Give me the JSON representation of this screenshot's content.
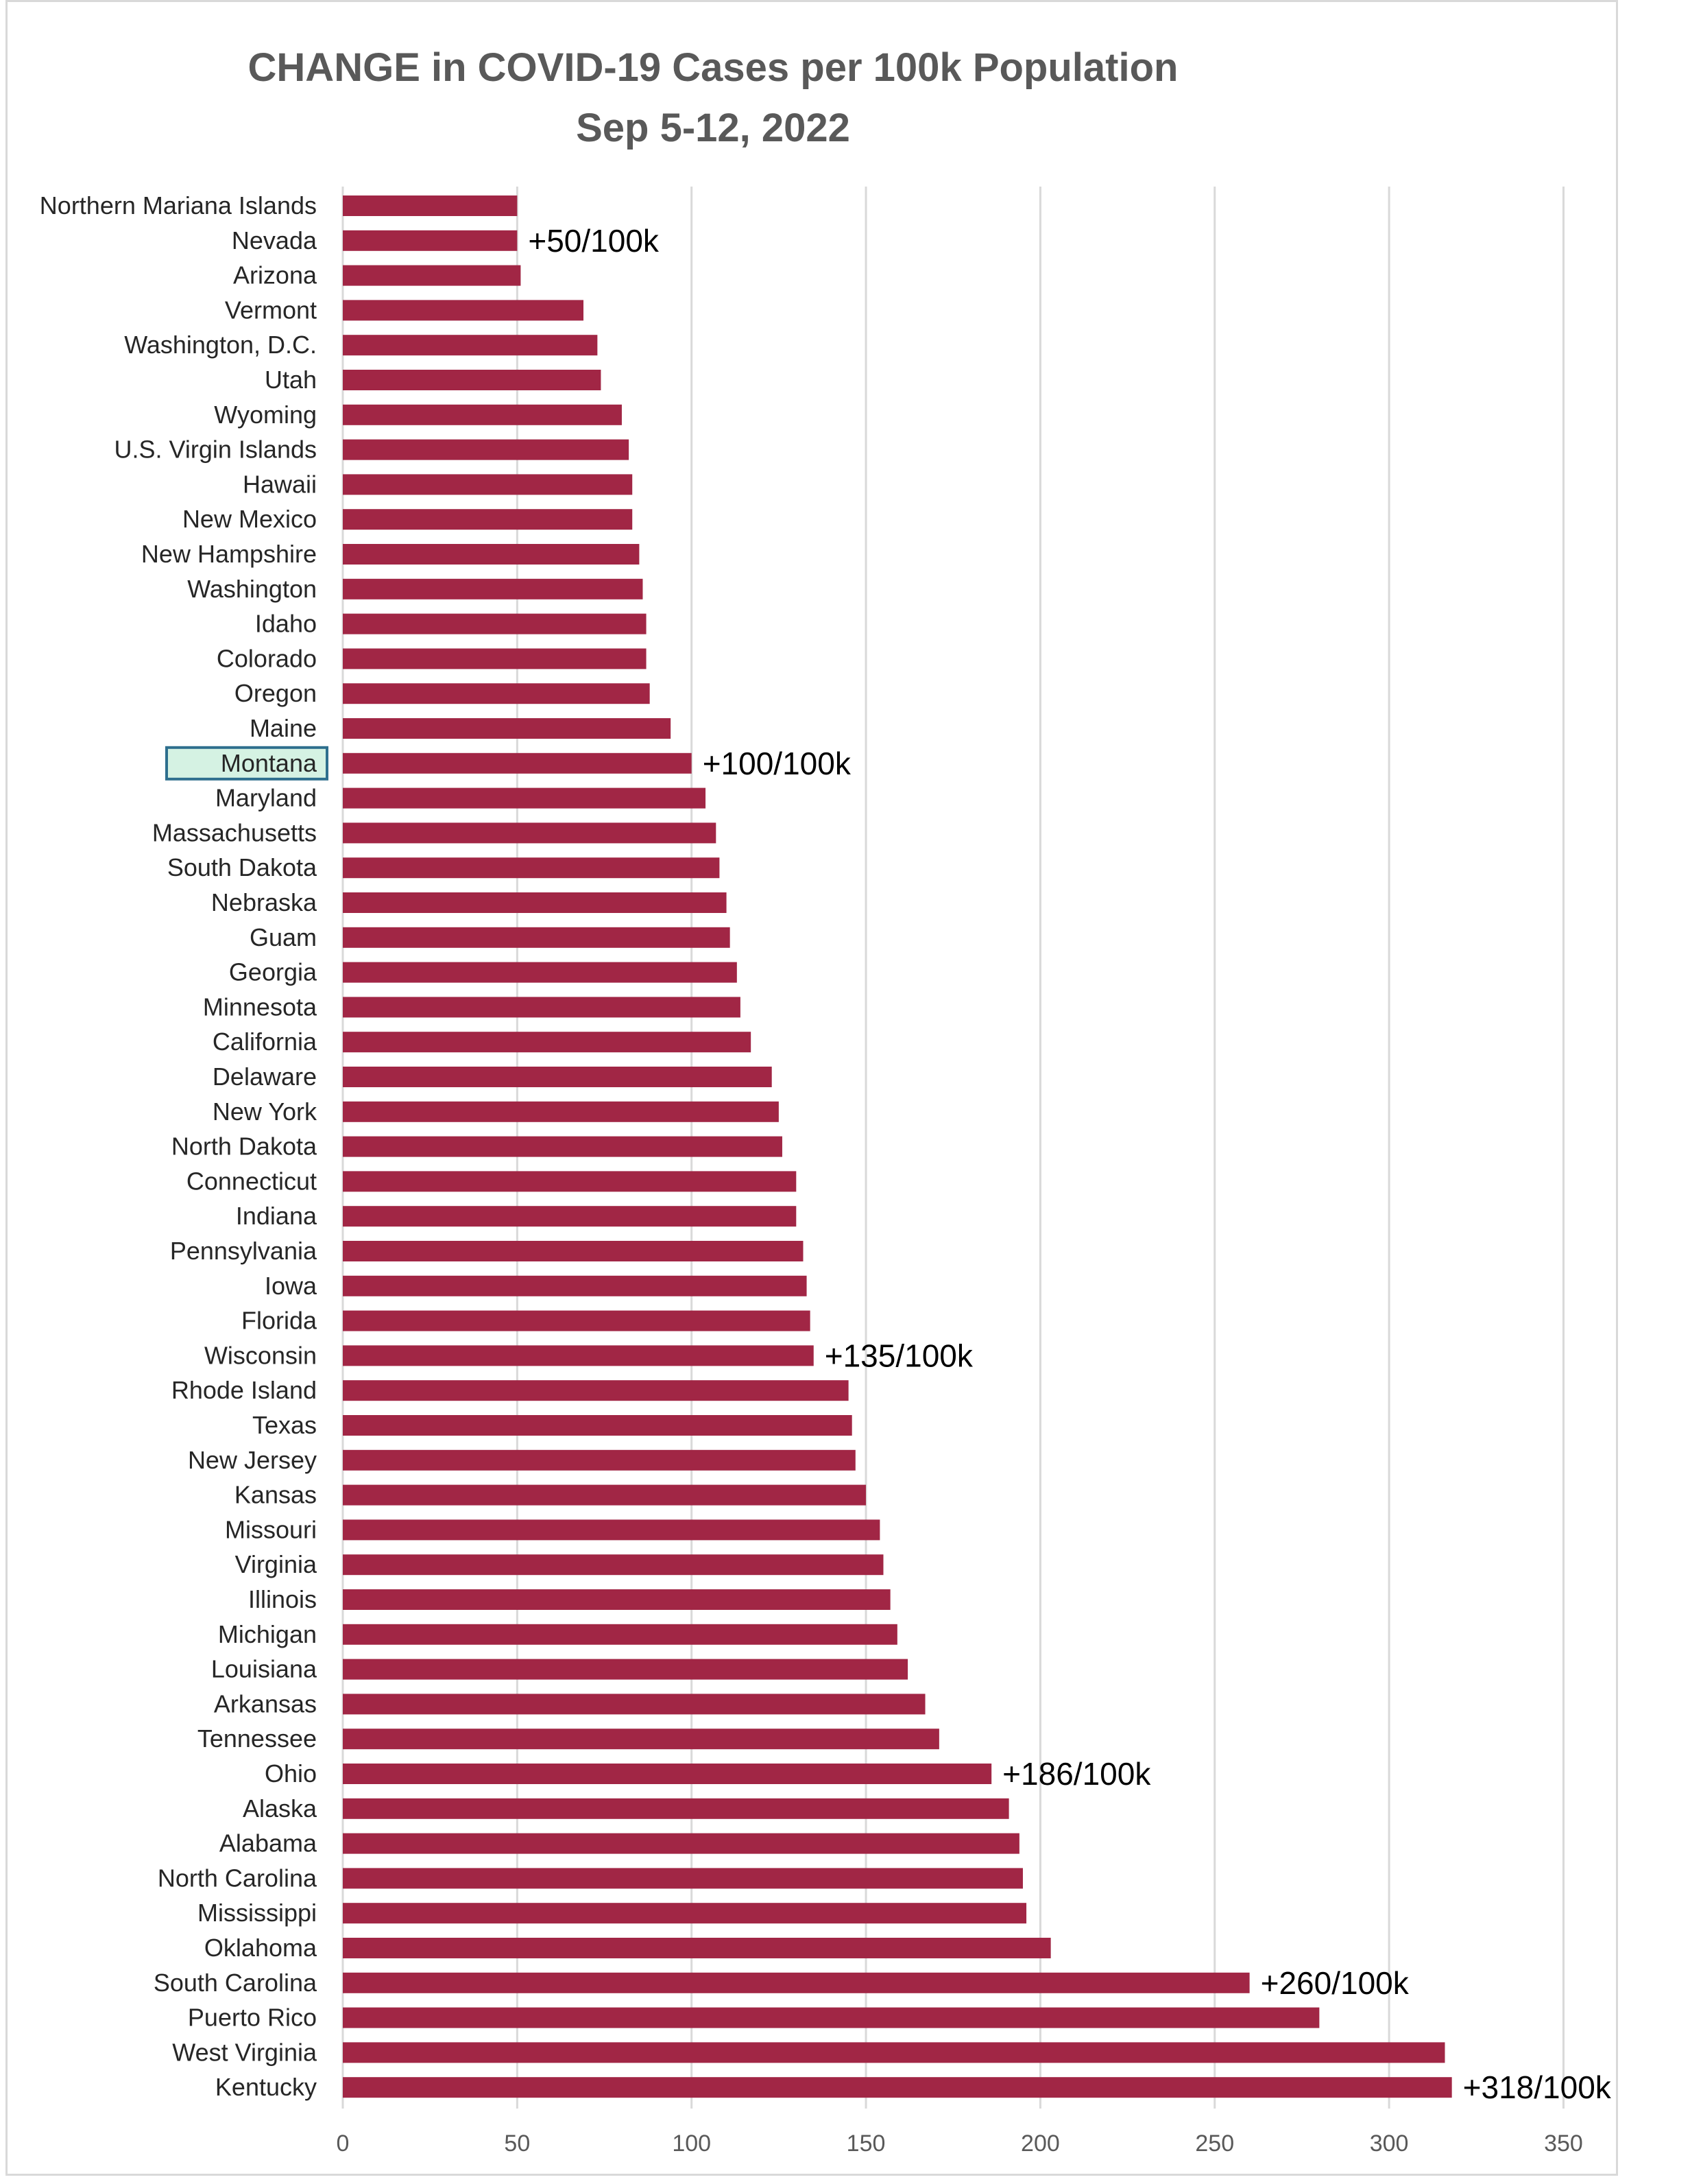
{
  "chart_data": {
    "type": "bar",
    "orientation": "horizontal",
    "title": "CHANGE in COVID-19 Cases per 100k Population",
    "subtitle": "Sep 5-12, 2022",
    "xlim": [
      0,
      350
    ],
    "xticks": [
      0,
      50,
      100,
      150,
      200,
      250,
      300,
      350
    ],
    "grid": true,
    "bar_color": "#a12645",
    "highlight_category": "Montana",
    "highlight_fill": "#d5f2e3",
    "highlight_border": "#2e6f8e",
    "categories": [
      "Northern Mariana Islands",
      "Nevada",
      "Arizona",
      "Vermont",
      "Washington, D.C.",
      "Utah",
      "Wyoming",
      "U.S. Virgin Islands",
      "Hawaii",
      "New Mexico",
      "New Hampshire",
      "Washington",
      "Idaho",
      "Colorado",
      "Oregon",
      "Maine",
      "Montana",
      "Maryland",
      "Massachusetts",
      "South Dakota",
      "Nebraska",
      "Guam",
      "Georgia",
      "Minnesota",
      "California",
      "Delaware",
      "New York",
      "North Dakota",
      "Connecticut",
      "Indiana",
      "Pennsylvania",
      "Iowa",
      "Florida",
      "Wisconsin",
      "Rhode Island",
      "Texas",
      "New Jersey",
      "Kansas",
      "Missouri",
      "Virginia",
      "Illinois",
      "Michigan",
      "Louisiana",
      "Arkansas",
      "Tennessee",
      "Ohio",
      "Alaska",
      "Alabama",
      "North Carolina",
      "Mississippi",
      "Oklahoma",
      "South Carolina",
      "Puerto Rico",
      "West Virginia",
      "Kentucky"
    ],
    "values": [
      50,
      50,
      51,
      69,
      73,
      74,
      80,
      82,
      83,
      83,
      85,
      86,
      87,
      87,
      88,
      94,
      100,
      104,
      107,
      108,
      110,
      111,
      113,
      114,
      117,
      123,
      125,
      126,
      130,
      130,
      132,
      133,
      134,
      135,
      145,
      146,
      147,
      150,
      154,
      155,
      157,
      159,
      162,
      167,
      171,
      186,
      191,
      194,
      195,
      196,
      203,
      260,
      280,
      316,
      318
    ],
    "annotations": [
      {
        "category": "Nevada",
        "text": "+50/100k"
      },
      {
        "category": "Montana",
        "text": "+100/100k"
      },
      {
        "category": "Wisconsin",
        "text": "+135/100k"
      },
      {
        "category": "Ohio",
        "text": "+186/100k"
      },
      {
        "category": "South Carolina",
        "text": "+260/100k"
      },
      {
        "category": "Kentucky",
        "text": "+318/100k"
      }
    ]
  }
}
